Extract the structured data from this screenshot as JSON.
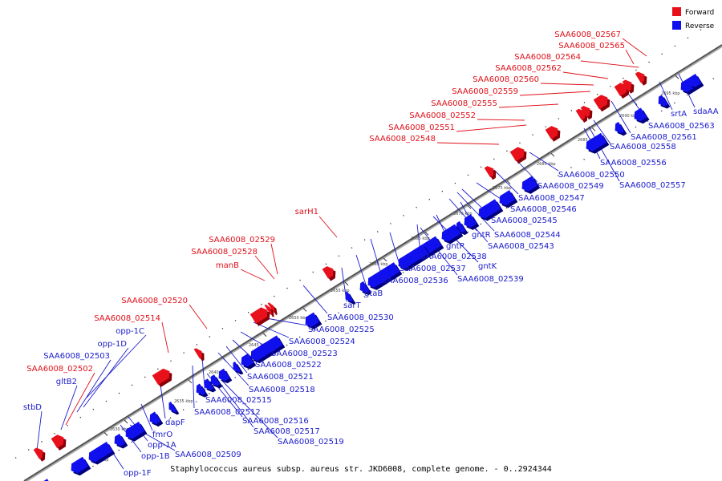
{
  "legend": {
    "forward_label": "Forward",
    "reverse_label": "Reverse",
    "forward_color": "#e8101a",
    "reverse_color": "#1010ee"
  },
  "caption": "Staphylococcus aureus subsp. aureus str. JKD6008, complete genome. - 0..2924344",
  "forward_genes": [
    {
      "name": "SAA6008_02567"
    },
    {
      "name": "SAA6008_02565"
    },
    {
      "name": "SAA6008_02564"
    },
    {
      "name": "SAA6008_02562"
    },
    {
      "name": "SAA6008_02560"
    },
    {
      "name": "SAA6008_02559"
    },
    {
      "name": "SAA6008_02555"
    },
    {
      "name": "SAA6008_02552"
    },
    {
      "name": "SAA6008_02551"
    },
    {
      "name": "SAA6008_02548"
    },
    {
      "name": "sarH1"
    },
    {
      "name": "SAA6008_02529"
    },
    {
      "name": "SAA6008_02528"
    },
    {
      "name": "manB"
    },
    {
      "name": "SAA6008_02520"
    },
    {
      "name": "SAA6008_02514"
    },
    {
      "name": "SAA6008_02502"
    }
  ],
  "reverse_genes_left": [
    {
      "name": "opp-1C"
    },
    {
      "name": "opp-1D"
    },
    {
      "name": "SAA6008_02503"
    },
    {
      "name": "gltB2"
    },
    {
      "name": "stbD"
    }
  ],
  "reverse_genes_right": [
    {
      "name": "srtA"
    },
    {
      "name": "sdaAA"
    },
    {
      "name": "SAA6008_02563"
    },
    {
      "name": "SAA6008_02561"
    },
    {
      "name": "SAA6008_02558"
    },
    {
      "name": "SAA6008_02556"
    },
    {
      "name": "SAA6008_02550"
    },
    {
      "name": "SAA6008_02557"
    },
    {
      "name": "SAA6008_02549"
    },
    {
      "name": "SAA6008_02547"
    },
    {
      "name": "SAA6008_02546"
    },
    {
      "name": "SAA6008_02545"
    },
    {
      "name": "gntR"
    },
    {
      "name": "SAA6008_02544"
    },
    {
      "name": "SAA6008_02543"
    },
    {
      "name": "gntP"
    },
    {
      "name": "SAA6008_02538"
    },
    {
      "name": "gntK"
    },
    {
      "name": "SAA6008_02537"
    },
    {
      "name": "SAA6008_02539"
    },
    {
      "name": "SAA6008_02536"
    },
    {
      "name": "gtaB"
    },
    {
      "name": "sarT"
    },
    {
      "name": "SAA6008_02530"
    },
    {
      "name": "SAA6008_02525"
    },
    {
      "name": "SAA6008_02524"
    },
    {
      "name": "SAA6008_02523"
    },
    {
      "name": "SAA6008_02522"
    },
    {
      "name": "SAA6008_02521"
    },
    {
      "name": "SAA6008_02518"
    },
    {
      "name": "SAA6008_02515"
    },
    {
      "name": "SAA6008_02512"
    },
    {
      "name": "SAA6008_02516"
    },
    {
      "name": "SAA6008_02517"
    },
    {
      "name": "SAA6008_02519"
    },
    {
      "name": "dapF"
    },
    {
      "name": "fmrO"
    },
    {
      "name": "opp-1A"
    },
    {
      "name": "opp-1B"
    },
    {
      "name": "SAA6008_02509"
    },
    {
      "name": "opp-1F"
    }
  ],
  "scale_ticks": [
    "2625 kbp",
    "2630 kbp",
    "2635 kbp",
    "2640 kbp",
    "2645 kbp",
    "2650 kbp",
    "2655 kbp",
    "2660 kbp",
    "2665 kbp",
    "2670 kbp",
    "2675 kbp",
    "2680 kbp",
    "2685 kbp",
    "2690 kbp",
    "2695 kbp"
  ]
}
